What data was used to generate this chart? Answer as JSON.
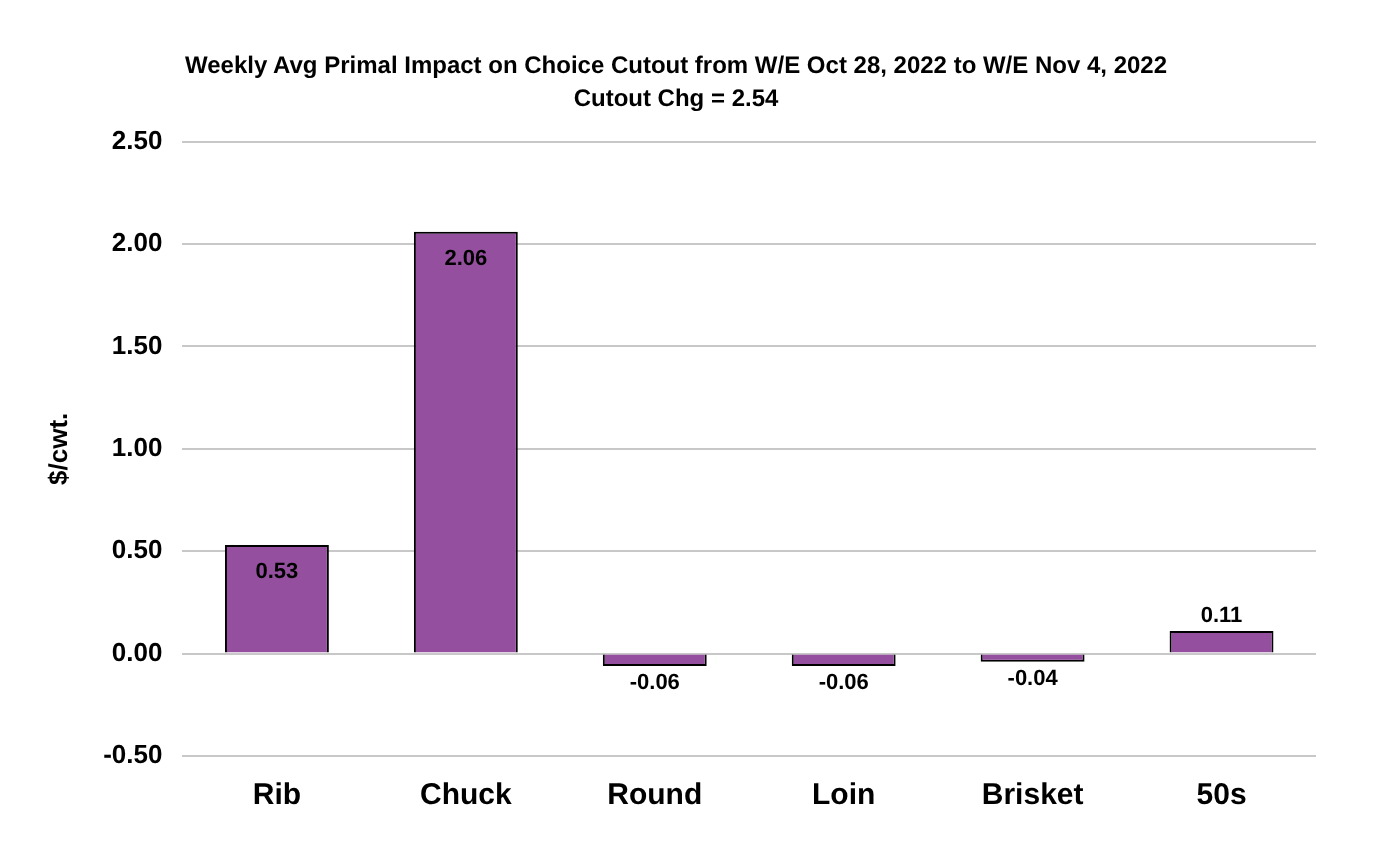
{
  "chart_data": {
    "type": "bar",
    "title": "Weekly Avg Primal Impact on Choice Cutout from W/E Oct 28, 2022 to W/E Nov 4, 2022",
    "subtitle": "Cutout Chg = 2.54",
    "ylabel": "$/cwt.",
    "categories": [
      "Rib",
      "Chuck",
      "Round",
      "Loin",
      "Brisket",
      "50s"
    ],
    "values": [
      0.53,
      2.06,
      -0.06,
      -0.06,
      -0.04,
      0.11
    ],
    "color": "#954f9f",
    "ylim": [
      -0.5,
      2.5
    ],
    "yticks": [
      {
        "value": -0.5,
        "label": "-0.50"
      },
      {
        "value": 0,
        "label": "0.00"
      },
      {
        "value": 0.5,
        "label": "0.50"
      },
      {
        "value": 1,
        "label": "1.00"
      },
      {
        "value": 1.5,
        "label": "1.50"
      },
      {
        "value": 2,
        "label": "2.00"
      },
      {
        "value": 2.5,
        "label": "2.50"
      }
    ],
    "grid": "y",
    "data_labels": true,
    "legend": false
  }
}
